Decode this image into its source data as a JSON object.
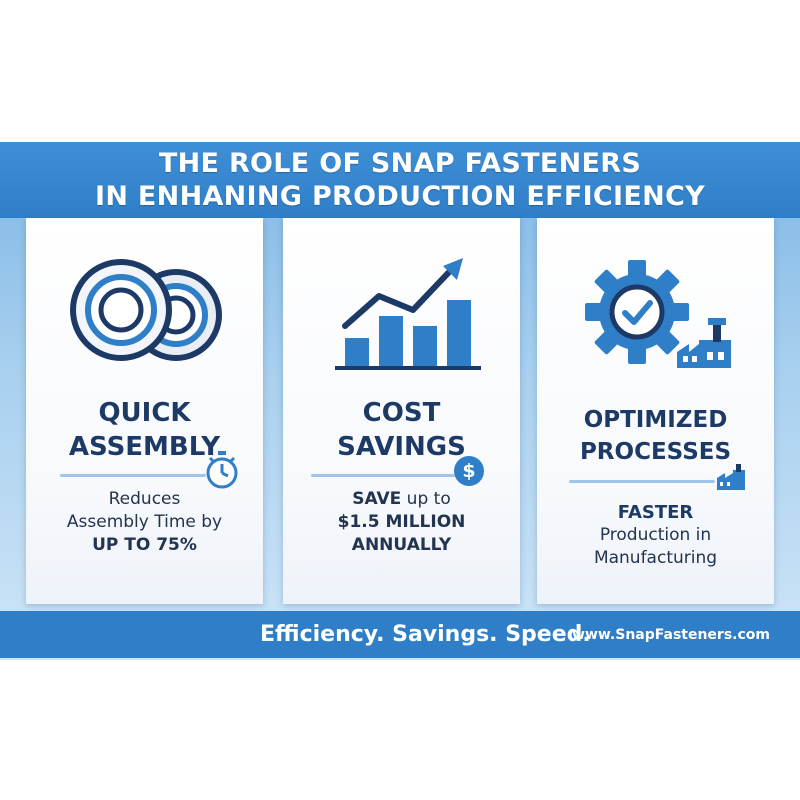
{
  "header": {
    "line1": "THE ROLE OF SNAP FASTENERS",
    "line2": "IN ENHANING PRODUCTION EFFICIENCY"
  },
  "cards": [
    {
      "title_lines": [
        "QUICK",
        "ASSEMBLY"
      ],
      "desc_lines": [
        "Reduces",
        "Assembly Time by"
      ],
      "desc_emphasis": "UP TO 75%",
      "icons": [
        "snap-fastener-icon",
        "stopwatch-icon"
      ]
    },
    {
      "title_lines": [
        "COST",
        "SAVINGS"
      ],
      "desc_save_bold": "SAVE",
      "desc_save_rest": " up to",
      "desc_emphasis_lines": [
        "$1.5 MILLION",
        "ANNUALLY"
      ],
      "badge_symbol": "$",
      "icons": [
        "growth-chart-icon",
        "dollar-coin-icon"
      ]
    },
    {
      "title_lines": [
        "OPTIMIZED",
        "PROCESSES"
      ],
      "desc_emphasis": "FASTER",
      "desc_lines": [
        "Production in",
        "Manufacturing"
      ],
      "icons": [
        "gear-check-icon",
        "factory-icon"
      ]
    }
  ],
  "footer": {
    "tagline": "Efficiency. Savings. Speed.",
    "website": "www.SnapFasteners.com"
  },
  "colors": {
    "primary": "#2f7fc8",
    "navy": "#1d3a66",
    "accent": "#3a8fd8"
  }
}
